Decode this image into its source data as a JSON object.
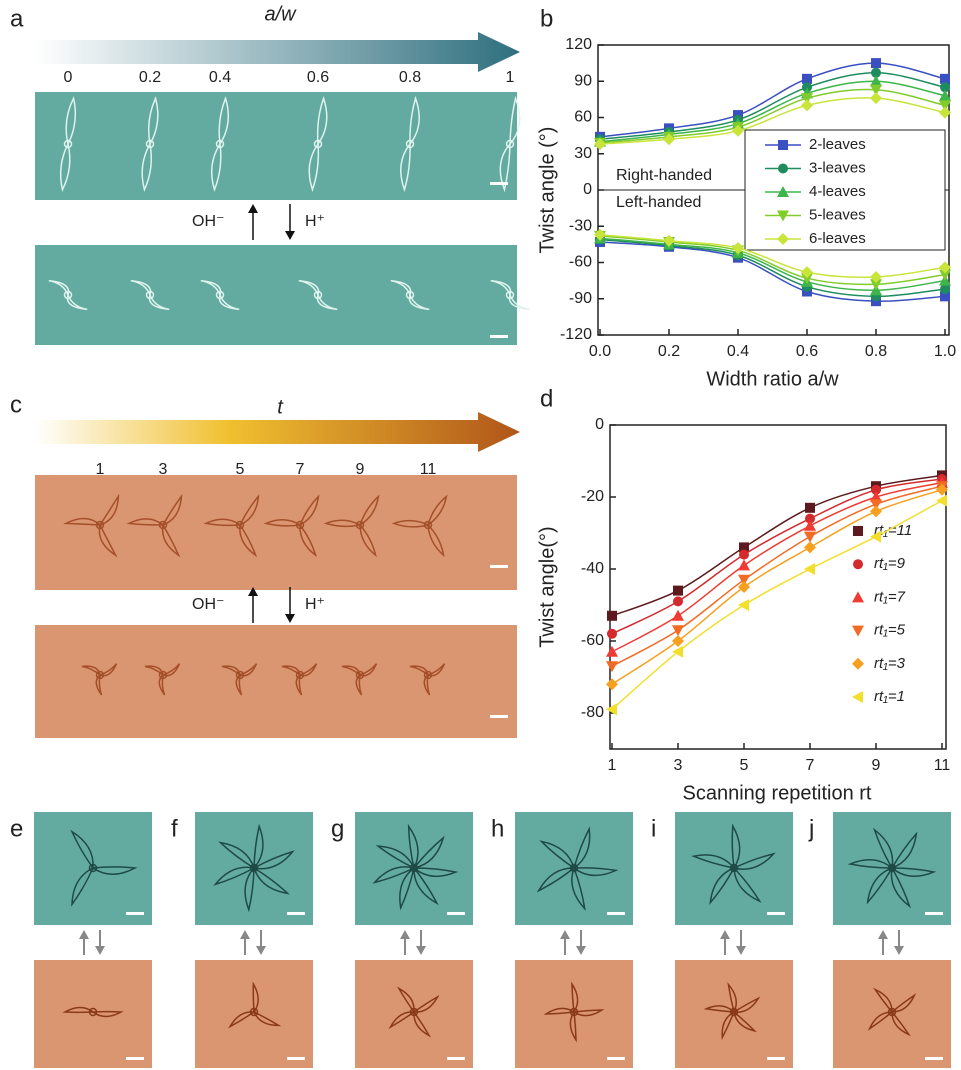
{
  "panels": {
    "a": {
      "label": "a",
      "title": "a/w",
      "ticks": [
        "0",
        "0.2",
        "0.4",
        "0.6",
        "0.8",
        "1"
      ],
      "up": "OH⁻",
      "down": "H⁺"
    },
    "c": {
      "label": "c",
      "title": "t",
      "ticks": [
        "1",
        "3",
        "5",
        "7",
        "9",
        "11"
      ],
      "up": "OH⁻",
      "down": "H⁺"
    },
    "b": {
      "label": "b"
    },
    "d": {
      "label": "d"
    },
    "bottom": [
      "e",
      "f",
      "g",
      "h",
      "i",
      "j"
    ]
  },
  "chart_data": [
    {
      "type": "line",
      "xlabel": "Width ratio a/w",
      "ylabel": "Twist angle (°)",
      "annotations": [
        "Right-handed",
        "Left-handed"
      ],
      "x": [
        0,
        0.2,
        0.4,
        0.6,
        0.8,
        1.0
      ],
      "xlim": [
        0,
        1
      ],
      "xticks": [
        {
          "value": 0,
          "label": "0.0"
        },
        0.2,
        0.4,
        0.6,
        0.8,
        {
          "value": 1,
          "label": "1.0"
        }
      ],
      "ylim": [
        -120,
        120
      ],
      "yticks": [
        -120,
        -90,
        -60,
        -30,
        0,
        30,
        60,
        90,
        120
      ],
      "legend": "right",
      "series": [
        {
          "name": "2-leaves",
          "color": "#3a4fc0",
          "marker": "square",
          "values": [
            44,
            51,
            62,
            92,
            105,
            92
          ],
          "values_left": [
            -43,
            -47,
            -56,
            -84,
            -92,
            -88
          ]
        },
        {
          "name": "3-leaves",
          "color": "#1e8c5e",
          "marker": "circle",
          "values": [
            42,
            48,
            58,
            85,
            97,
            85
          ],
          "values_left": [
            -41,
            -46,
            -54,
            -80,
            -88,
            -82
          ]
        },
        {
          "name": "4-leaves",
          "color": "#3db54a",
          "marker": "triangle",
          "values": [
            40,
            46,
            55,
            80,
            90,
            78
          ],
          "values_left": [
            -40,
            -45,
            -52,
            -76,
            -83,
            -75
          ]
        },
        {
          "name": "5-leaves",
          "color": "#80cc2a",
          "marker": "triangle-down",
          "values": [
            39,
            44,
            52,
            76,
            83,
            70
          ],
          "values_left": [
            -38,
            -43,
            -50,
            -73,
            -78,
            -70
          ]
        },
        {
          "name": "6-leaves",
          "color": "#c9e43a",
          "marker": "diamond",
          "values": [
            38,
            42,
            49,
            70,
            76,
            64
          ],
          "values_left": [
            -37,
            -42,
            -48,
            -68,
            -72,
            -64
          ]
        }
      ]
    },
    {
      "type": "line",
      "xlabel": "Scanning repetition rt",
      "ylabel": "Twist angle(°)",
      "x": [
        1,
        3,
        5,
        7,
        9,
        11
      ],
      "xlim": [
        1,
        11
      ],
      "xticks": [
        1,
        3,
        5,
        7,
        9,
        11
      ],
      "ylim": [
        -90,
        0
      ],
      "yticks": [
        -80,
        -60,
        -40,
        -20,
        0
      ],
      "legend": "lower right",
      "series": [
        {
          "name": "rt₁=11",
          "color": "#5c1a1e",
          "marker": "square",
          "values": [
            -53,
            -46,
            -34,
            -23,
            -17,
            -14
          ]
        },
        {
          "name": "rt₁=9",
          "color": "#d42a2e",
          "marker": "circle",
          "values": [
            -58,
            -49,
            -36,
            -26,
            -18,
            -15
          ]
        },
        {
          "name": "rt₁=7",
          "color": "#ef3b33",
          "marker": "triangle",
          "values": [
            -63,
            -53,
            -39,
            -28,
            -20,
            -16
          ]
        },
        {
          "name": "rt₁=5",
          "color": "#f26a24",
          "marker": "triangle-down",
          "values": [
            -67,
            -57,
            -43,
            -31,
            -22,
            -17
          ]
        },
        {
          "name": "rt₁=3",
          "color": "#f5a01e",
          "marker": "diamond",
          "values": [
            -72,
            -60,
            -45,
            -34,
            -24,
            -18
          ]
        },
        {
          "name": "rt₁=1",
          "color": "#f2df2c",
          "marker": "triangle-left",
          "values": [
            -79,
            -63,
            -50,
            -40,
            -31,
            -21
          ]
        }
      ]
    }
  ]
}
